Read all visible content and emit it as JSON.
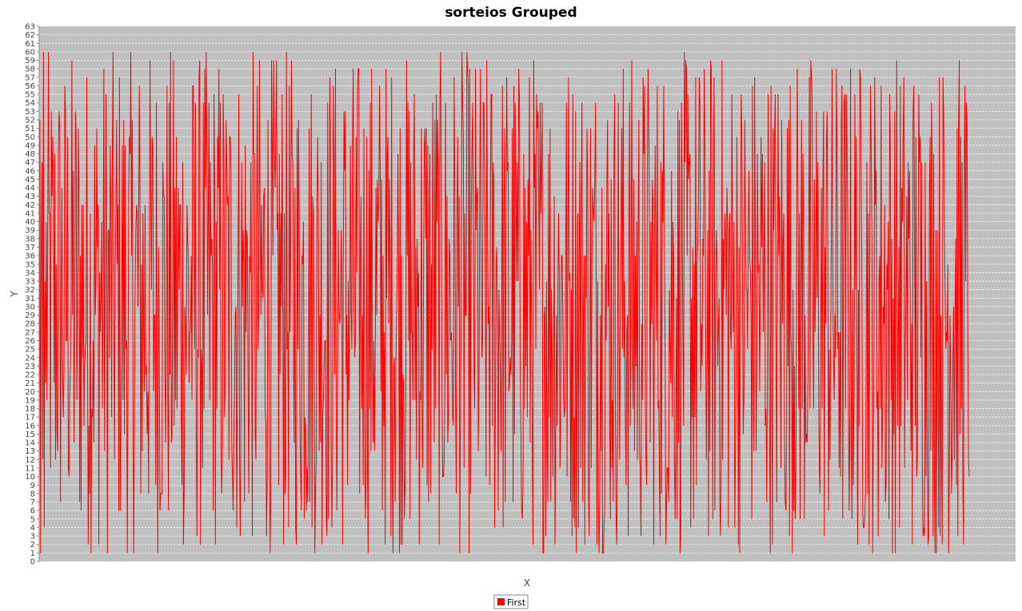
{
  "chart_data": {
    "type": "line",
    "title": "sorteios Grouped",
    "xlabel": "X",
    "ylabel": "Y",
    "ylim": [
      0,
      63
    ],
    "xlim": [
      0,
      1310
    ],
    "y_ticks": [
      0,
      1,
      2,
      3,
      4,
      5,
      6,
      7,
      8,
      9,
      10,
      11,
      12,
      13,
      14,
      15,
      16,
      17,
      18,
      19,
      20,
      21,
      22,
      23,
      24,
      25,
      26,
      27,
      28,
      29,
      30,
      31,
      32,
      33,
      34,
      35,
      36,
      37,
      38,
      39,
      40,
      41,
      42,
      43,
      44,
      45,
      46,
      47,
      48,
      49,
      50,
      51,
      52,
      53,
      54,
      55,
      56,
      57,
      58,
      59,
      60,
      61,
      62,
      63
    ],
    "grid": true,
    "legend_placement": "bottom",
    "background": "#c0c0c0",
    "grid_color": "#ffffff",
    "series": [
      {
        "name": "First",
        "color": "#ff0000",
        "values_min": 1,
        "values_max": 60,
        "count": 1310,
        "first_values": [
          9,
          52,
          1,
          38,
          47,
          12,
          60,
          4,
          33,
          21
        ]
      }
    ],
    "note_source": "dense series of roughly 1310 draws, each an integer from 1 to 60"
  }
}
